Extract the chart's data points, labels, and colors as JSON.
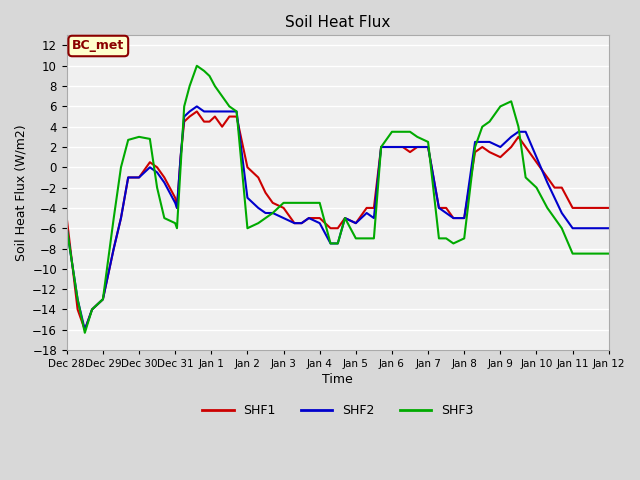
{
  "title": "Soil Heat Flux",
  "xlabel": "Time",
  "ylabel": "Soil Heat Flux (W/m2)",
  "ylim": [
    -18,
    13
  ],
  "yticks": [
    -18,
    -16,
    -14,
    -12,
    -10,
    -8,
    -6,
    -4,
    -2,
    0,
    2,
    4,
    6,
    8,
    10,
    12
  ],
  "bg_color": "#d8d8d8",
  "plot_bg": "#f0f0f0",
  "annotation": "BC_met",
  "annotation_bg": "#ffffcc",
  "annotation_border": "#8b0000",
  "x_labels": [
    "Dec 28",
    "Dec 29",
    "Dec 30",
    "Dec 31",
    "Jan 1",
    "Jan 2",
    "Jan 3",
    "Jan 4",
    "Jan 5",
    "Jan 6",
    "Jan 7",
    "Jan 8",
    "Jan 9",
    "Jan 10",
    "Jan 11",
    "Jan 12"
  ],
  "xtick_positions": [
    0,
    1,
    2,
    3,
    4,
    5,
    6,
    7,
    8,
    9,
    10,
    11,
    12,
    13,
    14,
    15
  ],
  "shf1_x": [
    0,
    0.3,
    0.5,
    0.7,
    1.0,
    1.3,
    1.5,
    1.7,
    2.0,
    2.3,
    2.5,
    2.7,
    3.0,
    3.05,
    3.15,
    3.25,
    3.4,
    3.6,
    3.8,
    3.95,
    4.1,
    4.3,
    4.5,
    4.7,
    5.0,
    5.3,
    5.5,
    5.7,
    6.0,
    6.3,
    6.5,
    6.7,
    7.0,
    7.3,
    7.5,
    7.7,
    8.0,
    8.3,
    8.5,
    8.7,
    9.0,
    9.3,
    9.5,
    9.7,
    10.0,
    10.3,
    10.5,
    10.7,
    11.0,
    11.3,
    11.5,
    11.7,
    12.0,
    12.3,
    12.5,
    12.7,
    13.0,
    13.3,
    13.5,
    13.7,
    14.0,
    15.0
  ],
  "shf1": [
    -5,
    -14,
    -16,
    -14,
    -13,
    -8,
    -5,
    -1,
    -1,
    0.5,
    0,
    -1,
    -3,
    -4,
    1,
    4.5,
    5,
    5.5,
    4.5,
    4.5,
    5,
    4,
    5,
    5,
    0,
    -1,
    -2.5,
    -3.5,
    -4,
    -5.5,
    -5.5,
    -5,
    -5,
    -6,
    -6,
    -5,
    -5.5,
    -4,
    -4,
    2,
    2,
    2,
    1.5,
    2,
    2,
    -4,
    -4,
    -5,
    -5,
    1.5,
    2,
    1.5,
    1,
    2,
    3,
    2,
    0.5,
    -1,
    -2,
    -2,
    -4,
    -4
  ],
  "shf2_x": [
    0,
    0.3,
    0.5,
    0.7,
    1.0,
    1.3,
    1.5,
    1.7,
    2.0,
    2.3,
    2.5,
    2.7,
    3.0,
    3.05,
    3.15,
    3.25,
    3.4,
    3.6,
    3.8,
    3.95,
    4.1,
    4.3,
    4.5,
    4.7,
    5.0,
    5.3,
    5.5,
    5.7,
    6.0,
    6.3,
    6.5,
    6.7,
    7.0,
    7.3,
    7.5,
    7.7,
    8.0,
    8.3,
    8.5,
    8.7,
    9.0,
    9.3,
    9.5,
    9.7,
    10.0,
    10.3,
    10.5,
    10.7,
    11.0,
    11.3,
    11.5,
    11.7,
    12.0,
    12.3,
    12.5,
    12.7,
    13.0,
    13.3,
    13.5,
    13.7,
    14.0,
    15.0
  ],
  "shf2": [
    -6,
    -13,
    -16,
    -14,
    -13,
    -8,
    -5,
    -1,
    -1,
    0,
    -0.5,
    -1.5,
    -3.5,
    -4,
    1,
    5,
    5.5,
    6,
    5.5,
    5.5,
    5.5,
    5.5,
    5.5,
    5.5,
    -3,
    -4,
    -4.5,
    -4.5,
    -5,
    -5.5,
    -5.5,
    -5,
    -5.5,
    -7.5,
    -7.5,
    -5,
    -5.5,
    -4.5,
    -5,
    2,
    2,
    2,
    2,
    2,
    2,
    -4,
    -4.5,
    -5,
    -5,
    2.5,
    2.5,
    2.5,
    2,
    3,
    3.5,
    3.5,
    1,
    -1.5,
    -3,
    -4.5,
    -6,
    -6
  ],
  "shf3_x": [
    0,
    0.3,
    0.5,
    0.7,
    1.0,
    1.3,
    1.5,
    1.7,
    2.0,
    2.3,
    2.5,
    2.7,
    3.0,
    3.05,
    3.15,
    3.25,
    3.4,
    3.6,
    3.8,
    3.95,
    4.1,
    4.3,
    4.5,
    4.7,
    5.0,
    5.3,
    5.5,
    5.7,
    6.0,
    6.3,
    6.5,
    6.7,
    7.0,
    7.3,
    7.5,
    7.7,
    8.0,
    8.3,
    8.5,
    8.7,
    9.0,
    9.3,
    9.5,
    9.7,
    10.0,
    10.3,
    10.5,
    10.7,
    11.0,
    11.3,
    11.5,
    11.7,
    12.0,
    12.3,
    12.5,
    12.7,
    13.0,
    13.3,
    13.5,
    13.7,
    14.0,
    15.0
  ],
  "shf3": [
    -6,
    -13,
    -16.3,
    -14,
    -13,
    -5,
    0,
    2.7,
    3,
    2.8,
    -2,
    -5,
    -5.5,
    -6,
    0,
    6,
    8,
    10,
    9.5,
    9,
    8,
    7,
    6,
    5.5,
    -6,
    -5.5,
    -5,
    -4.5,
    -3.5,
    -3.5,
    -3.5,
    -3.5,
    -3.5,
    -7.5,
    -7.5,
    -5,
    -7,
    -7,
    -7,
    2,
    3.5,
    3.5,
    3.5,
    3,
    2.5,
    -7,
    -7,
    -7.5,
    -7,
    2,
    4,
    4.5,
    6,
    6.5,
    4,
    -1,
    -2,
    -4,
    -5,
    -6,
    -8.5,
    -8.5
  ],
  "shf1_color": "#cc0000",
  "shf2_color": "#0000cc",
  "shf3_color": "#00aa00",
  "line_width": 1.5,
  "legend_labels": [
    "SHF1",
    "SHF2",
    "SHF3"
  ]
}
